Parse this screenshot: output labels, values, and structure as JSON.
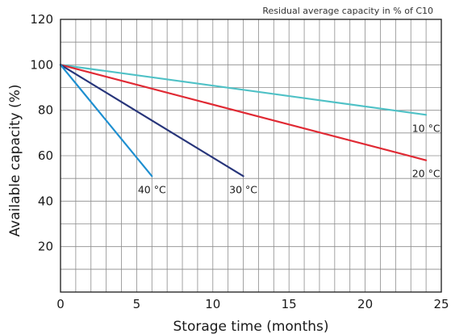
{
  "chart_data": {
    "type": "line",
    "subtitle": "Residual average capacity in % of C10",
    "xlabel": "Storage time (months)",
    "ylabel": "Available capacity (%)",
    "xlim": [
      0,
      25
    ],
    "ylim": [
      0,
      120
    ],
    "x_ticks": [
      0,
      5,
      10,
      15,
      20,
      25
    ],
    "y_ticks": [
      20,
      40,
      60,
      80,
      100,
      120
    ],
    "x_minor_step": 1,
    "y_minor_step": 10,
    "grid": true,
    "legend": "labels placed at line ends",
    "series": [
      {
        "name": "10 °C",
        "color": "#4fc1c6",
        "x": [
          0,
          24
        ],
        "y": [
          100,
          78
        ]
      },
      {
        "name": "20 °C",
        "color": "#e02a34",
        "x": [
          0,
          24
        ],
        "y": [
          100,
          58
        ]
      },
      {
        "name": "30 °C",
        "color": "#27357a",
        "x": [
          0,
          12
        ],
        "y": [
          100,
          51
        ]
      },
      {
        "name": "40 °C",
        "color": "#1e8fd0",
        "x": [
          0,
          6
        ],
        "y": [
          100,
          51
        ]
      }
    ]
  }
}
